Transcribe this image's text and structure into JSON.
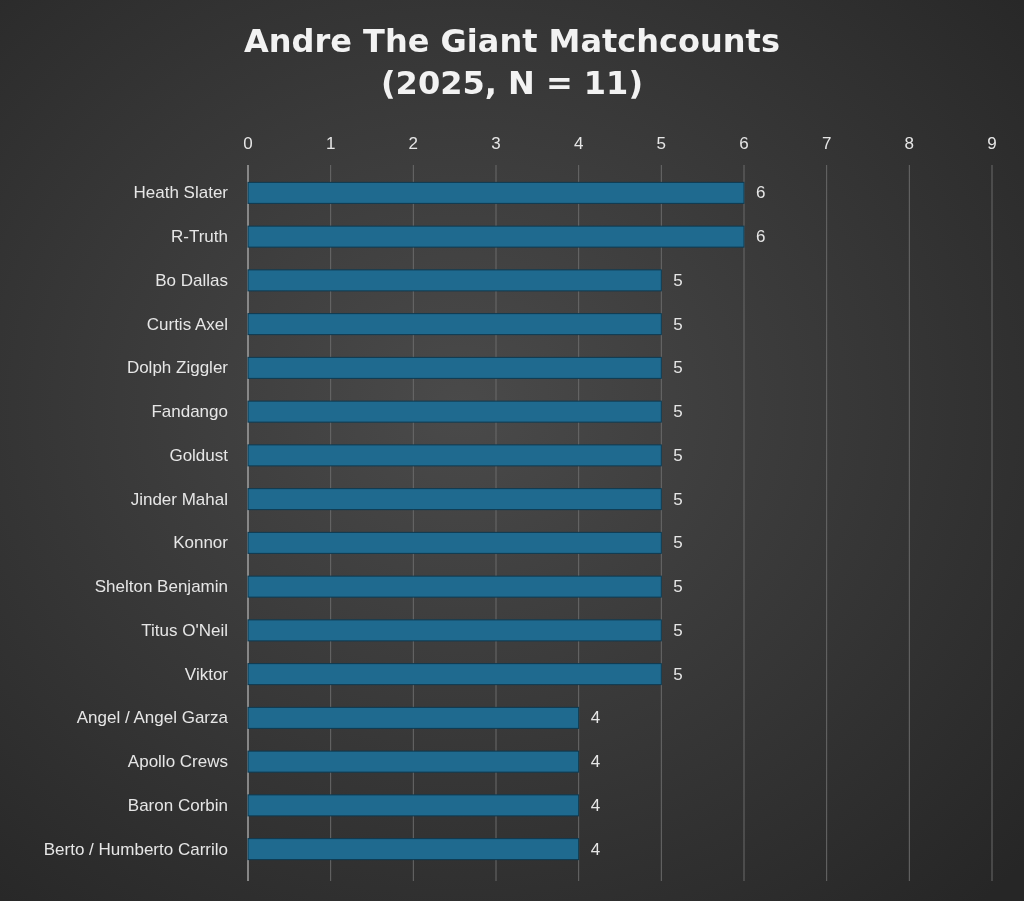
{
  "chart_data": {
    "type": "bar",
    "orientation": "horizontal",
    "title": "Andre The Giant Matchcounts\n(2025, N = 11)",
    "categories": [
      "Heath Slater",
      "R-Truth",
      "Bo Dallas",
      "Curtis Axel",
      "Dolph Ziggler",
      "Fandango",
      "Goldust",
      "Jinder Mahal",
      "Konnor",
      "Shelton Benjamin",
      "Titus O'Neil",
      "Viktor",
      "Angel / Angel Garza",
      "Apollo Crews",
      "Baron Corbin",
      "Berto / Humberto Carrilo"
    ],
    "values": [
      6,
      6,
      5,
      5,
      5,
      5,
      5,
      5,
      5,
      5,
      5,
      5,
      4,
      4,
      4,
      4
    ],
    "color": "#1f6a8f",
    "xlim": [
      0,
      9
    ],
    "xticks": [
      0,
      1,
      2,
      3,
      4,
      5,
      6,
      7,
      8,
      9
    ],
    "grid": "x",
    "data_labels": true
  }
}
